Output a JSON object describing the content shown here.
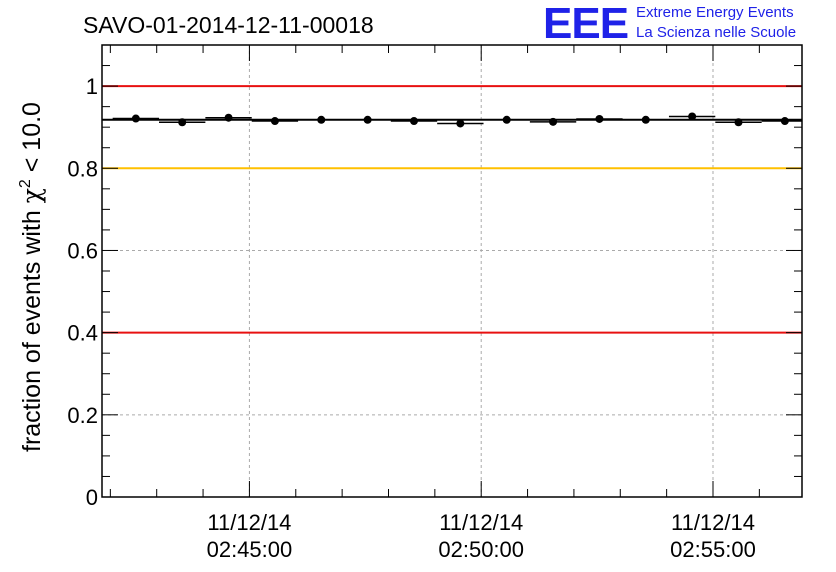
{
  "chart_data": {
    "type": "scatter",
    "title": "SAVO-01-2014-12-11-00018",
    "ylabel_main": "fraction of events with ",
    "ylabel_chi": "χ",
    "ylabel_sup": "2",
    "ylabel_tail": " < 10.0",
    "ylim": [
      0,
      1.1
    ],
    "y_ticks": [
      {
        "value": 0,
        "label": "0"
      },
      {
        "value": 0.2,
        "label": "0.2"
      },
      {
        "value": 0.4,
        "label": "0.4"
      },
      {
        "value": 0.6,
        "label": "0.6"
      },
      {
        "value": 0.8,
        "label": "0.8"
      },
      {
        "value": 1.0,
        "label": "1"
      }
    ],
    "xlim_minutes": [
      -3.18,
      11.92
    ],
    "x_major_ticks": [
      {
        "minutes": 0,
        "date": "11/12/14",
        "time": "02:45:00"
      },
      {
        "minutes": 5,
        "date": "11/12/14",
        "time": "02:50:00"
      },
      {
        "minutes": 10,
        "date": "11/12/14",
        "time": "02:55:00"
      }
    ],
    "bin_width_minutes": 1.0,
    "series": [
      {
        "name": "fraction",
        "x_minutes": [
          -2.45,
          -1.45,
          -0.45,
          0.55,
          1.55,
          2.55,
          3.55,
          4.55,
          5.55,
          6.55,
          7.55,
          8.55,
          9.55,
          10.55,
          11.55
        ],
        "values": [
          0.921,
          0.912,
          0.923,
          0.915,
          0.918,
          0.918,
          0.915,
          0.909,
          0.918,
          0.913,
          0.92,
          0.918,
          0.926,
          0.912,
          0.915
        ],
        "color": "#000000"
      }
    ],
    "mean_line": {
      "value": 0.918,
      "color": "#000000"
    },
    "reference_lines": [
      {
        "value": 1.0,
        "color": "#e81010"
      },
      {
        "value": 0.8,
        "color": "#ffc000"
      },
      {
        "value": 0.4,
        "color": "#e81010"
      }
    ],
    "grid": true
  },
  "logo": {
    "mark": "EEE",
    "line1": "Extreme Energy Events",
    "line2": "La Scienza nelle Scuole",
    "color": "#1f22e8"
  }
}
